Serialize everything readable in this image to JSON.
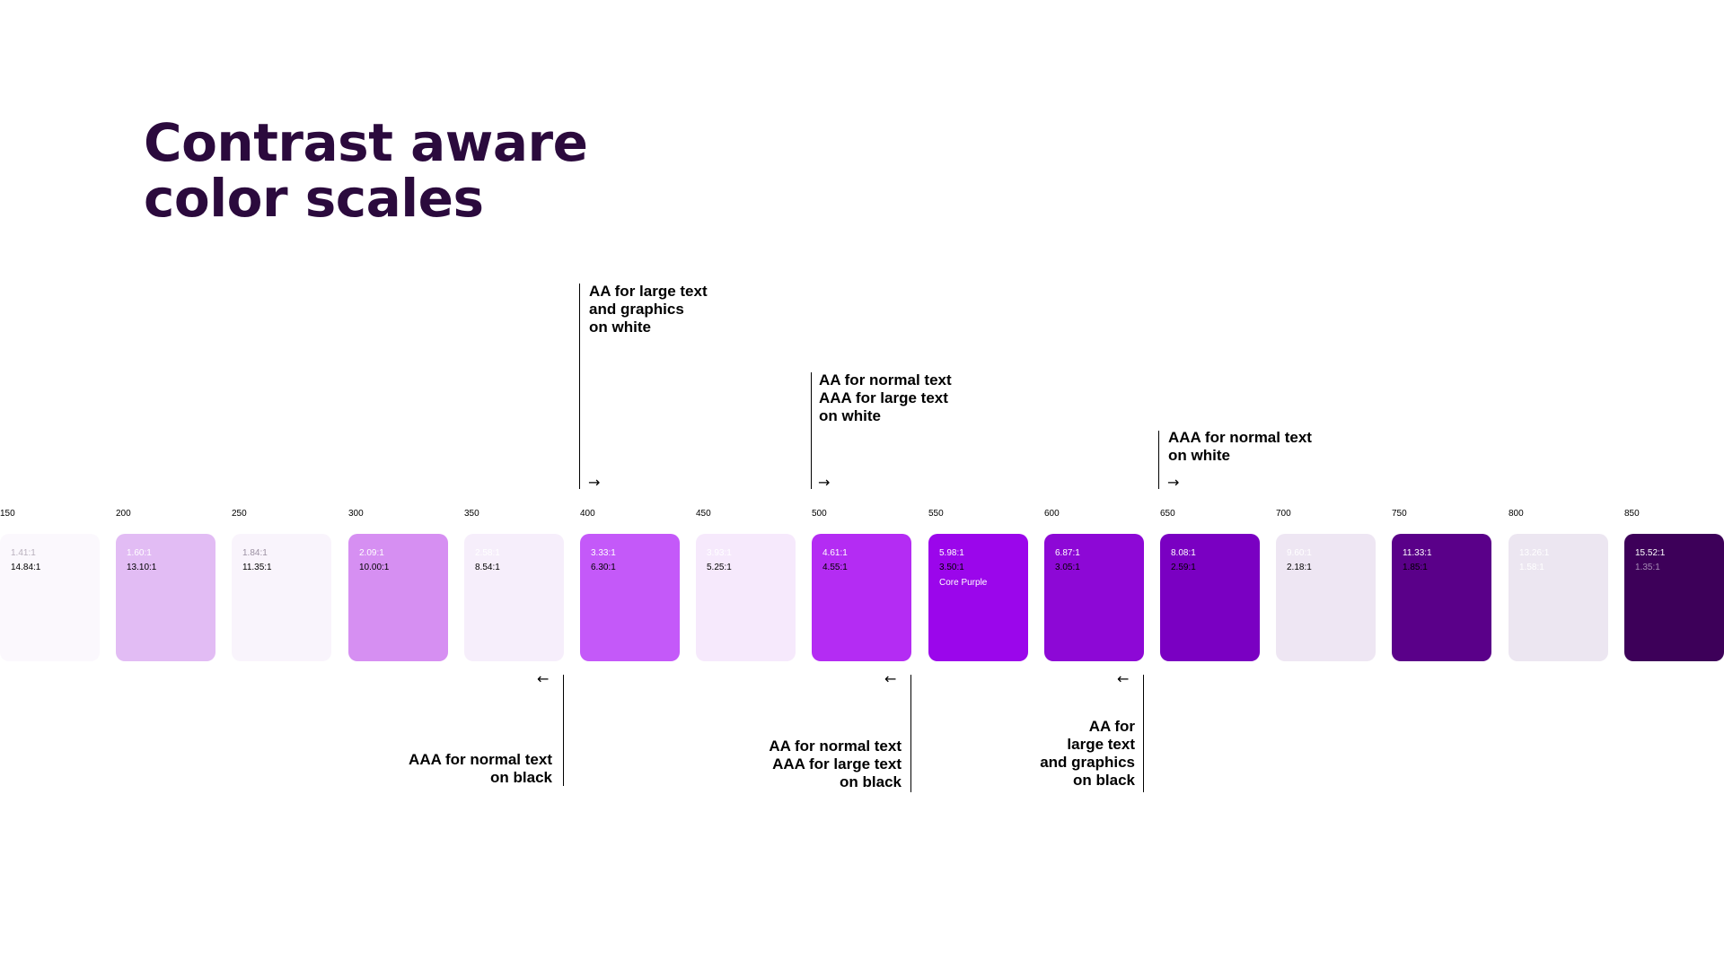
{
  "title": {
    "line1": "Contrast aware",
    "line2": "color scales"
  },
  "callouts_top": [
    {
      "lines": [
        "AA for large text",
        "and graphics",
        "on white"
      ],
      "arrow": "→"
    },
    {
      "lines": [
        "AA for normal text",
        "AAA for large text",
        "on white"
      ],
      "arrow": "→"
    },
    {
      "lines": [
        "AAA for normal text",
        "on white"
      ],
      "arrow": "→"
    }
  ],
  "callouts_bottom": [
    {
      "lines": [
        "AAA for normal text",
        "on black"
      ],
      "arrow": "←"
    },
    {
      "lines": [
        "AA for normal text",
        "AAA for large text",
        "on black"
      ],
      "arrow": "←"
    },
    {
      "lines": [
        "AA for",
        "large text",
        "and graphics",
        "on black"
      ],
      "arrow": "←"
    }
  ],
  "swatches": [
    {
      "step": "150",
      "white_ratio": "1.41:1",
      "black_ratio": "14.84:1",
      "color": "#fbf8fd",
      "white_text_color": "#b8b0bd",
      "black_text_color": "#000000"
    },
    {
      "step": "200",
      "white_ratio": "1.60:1",
      "black_ratio": "13.10:1",
      "color": "#e2bcf4",
      "white_text_color": "#ffffff",
      "black_text_color": "#000000"
    },
    {
      "step": "250",
      "white_ratio": "1.84:1",
      "black_ratio": "11.35:1",
      "color": "#f9f4fc",
      "white_text_color": "#9b90a2",
      "black_text_color": "#000000"
    },
    {
      "step": "300",
      "white_ratio": "2.09:1",
      "black_ratio": "10.00:1",
      "color": "#d68ff2",
      "white_text_color": "#ffffff",
      "black_text_color": "#000000"
    },
    {
      "step": "350",
      "white_ratio": "2.58:1",
      "black_ratio": "8.54:1",
      "color": "#f6eefb",
      "white_text_color": "#ffffff",
      "black_text_color": "#000000"
    },
    {
      "step": "400",
      "white_ratio": "3.33:1",
      "black_ratio": "6.30:1",
      "color": "#c459f9",
      "white_text_color": "#ffffff",
      "black_text_color": "#000000"
    },
    {
      "step": "450",
      "white_ratio": "3.93:1",
      "black_ratio": "5.25:1",
      "color": "#f6e9fc",
      "white_text_color": "#ffffff",
      "black_text_color": "#000000"
    },
    {
      "step": "500",
      "white_ratio": "4.61:1",
      "black_ratio": "4.55:1",
      "color": "#b42cf3",
      "white_text_color": "#ffffff",
      "black_text_color": "#000000"
    },
    {
      "step": "550",
      "white_ratio": "5.98:1",
      "black_ratio": "3.50:1",
      "color": "#9b06eb",
      "white_text_color": "#ffffff",
      "black_text_color": "#000000",
      "name": "Core Purple"
    },
    {
      "step": "600",
      "white_ratio": "6.87:1",
      "black_ratio": "3.05:1",
      "color": "#8d08d6",
      "white_text_color": "#ffffff",
      "black_text_color": "#000000"
    },
    {
      "step": "650",
      "white_ratio": "8.08:1",
      "black_ratio": "2.59:1",
      "color": "#7a00c2",
      "white_text_color": "#ffffff",
      "black_text_color": "#000000"
    },
    {
      "step": "700",
      "white_ratio": "9.60:1",
      "black_ratio": "2.18:1",
      "color": "#eee6f3",
      "white_text_color": "#ffffff",
      "black_text_color": "#000000"
    },
    {
      "step": "750",
      "white_ratio": "11.33:1",
      "black_ratio": "1.85:1",
      "color": "#5a0089",
      "white_text_color": "#ffffff",
      "black_text_color": "#000000"
    },
    {
      "step": "800",
      "white_ratio": "13.26:1",
      "black_ratio": "1.58:1",
      "color": "#ece6f1",
      "white_text_color": "#ffffff",
      "black_text_color": "#ffffff"
    },
    {
      "step": "850",
      "white_ratio": "15.52:1",
      "black_ratio": "1.35:1",
      "color": "#3d0059",
      "white_text_color": "#ffffff",
      "black_text_color": "#a68bb5"
    }
  ]
}
